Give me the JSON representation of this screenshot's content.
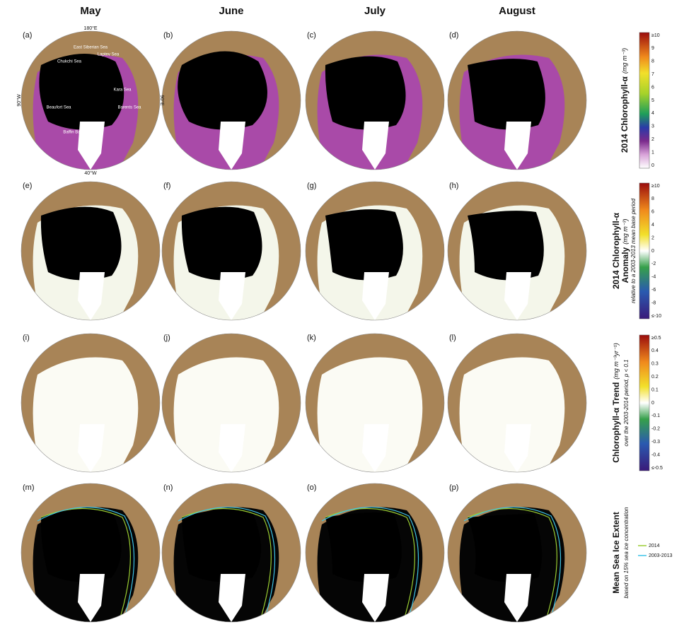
{
  "columns": [
    "May",
    "June",
    "July",
    "August"
  ],
  "panels": [
    "(a)",
    "(b)",
    "(c)",
    "(d)",
    "(e)",
    "(f)",
    "(g)",
    "(h)",
    "(i)",
    "(j)",
    "(k)",
    "(l)",
    "(m)",
    "(n)",
    "(o)",
    "(p)"
  ],
  "map_labels": {
    "top": "180°E",
    "bottom": "40°W",
    "left": "90°W",
    "right": "90°E",
    "seas": [
      "Chukchi Sea",
      "East Siberian Sea",
      "Laptev Sea",
      "Beaufort Sea",
      "Kara Sea",
      "Barents Sea",
      "Baffin Bay"
    ]
  },
  "legends": [
    {
      "title": "2014 Chlorophyll-α",
      "unit": "(mg m⁻³)",
      "ticks": [
        "≥10",
        "9",
        "8",
        "7",
        "6",
        "5",
        "4",
        "3",
        "2",
        "1",
        "0"
      ]
    },
    {
      "title": "2014 Chlorophyll-α",
      "title2": "Anomaly",
      "unit": "(mg m⁻³)",
      "note": "relative to a 2003-2013 mean base period",
      "ticks": [
        "≥10",
        "8",
        "6",
        "4",
        "2",
        "0",
        "-2",
        "-4",
        "-6",
        "-8",
        "≤-10"
      ]
    },
    {
      "title": "Chlorophyll-α Trend",
      "unit": "(mg m⁻³yr⁻¹)",
      "note": "over the 2003-2014 period, p < 0.1",
      "ticks": [
        "≥0.5",
        "0.4",
        "0.3",
        "0.2",
        "0.1",
        "0",
        "-0.1",
        "-0.2",
        "-0.3",
        "-0.4",
        "≤-0.5"
      ]
    },
    {
      "title": "Mean Sea Ice Extent",
      "note": "based on 15% sea ice concentration",
      "items": [
        {
          "name": "2014",
          "color": "#9acd32"
        },
        {
          "name": "2003-2013",
          "color": "#3fc4e8"
        }
      ]
    }
  ]
}
